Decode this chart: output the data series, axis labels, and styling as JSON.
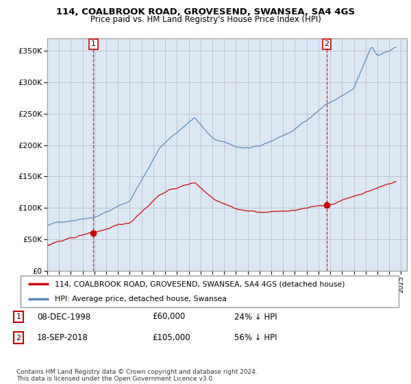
{
  "title": "114, COALBROOK ROAD, GROVESEND, SWANSEA, SA4 4GS",
  "subtitle": "Price paid vs. HM Land Registry's House Price Index (HPI)",
  "legend_label_red": "114, COALBROOK ROAD, GROVESEND, SWANSEA, SA4 4GS (detached house)",
  "legend_label_blue": "HPI: Average price, detached house, Swansea",
  "footnote": "Contains HM Land Registry data © Crown copyright and database right 2024.\nThis data is licensed under the Open Government Licence v3.0.",
  "transaction1_date": "08-DEC-1998",
  "transaction1_price": "£60,000",
  "transaction1_hpi": "24% ↓ HPI",
  "transaction2_date": "18-SEP-2018",
  "transaction2_price": "£105,000",
  "transaction2_hpi": "56% ↓ HPI",
  "ylim": [
    0,
    370000
  ],
  "yticks": [
    0,
    50000,
    100000,
    150000,
    200000,
    250000,
    300000,
    350000
  ],
  "background_color": "#ffffff",
  "chart_bg_color": "#dce9f5",
  "grid_color": "#aaaacc",
  "red_color": "#cc0000",
  "blue_color": "#5588bb",
  "transaction1_x": 1998.92,
  "transaction1_y": 60000,
  "transaction2_x": 2018.71,
  "transaction2_y": 105000,
  "xlim_left": 1995.0,
  "xlim_right": 2025.5
}
